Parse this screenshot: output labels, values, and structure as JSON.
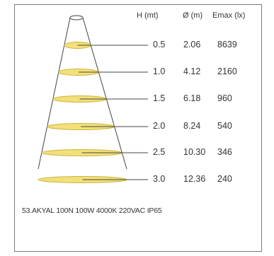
{
  "headers": {
    "h": "H (mt)",
    "d": "Ø (m)",
    "e": "Emax (lx)"
  },
  "rows": [
    {
      "h": "0.5",
      "d": "2.06",
      "e": "8639"
    },
    {
      "h": "1.0",
      "d": "4.12",
      "e": "2160"
    },
    {
      "h": "1.5",
      "d": "6.18",
      "e": "960"
    },
    {
      "h": "2.0",
      "d": "8.24",
      "e": "540"
    },
    {
      "h": "2.5",
      "d": "10.30",
      "e": "346"
    },
    {
      "h": "3.0",
      "d": "12.36",
      "e": "240"
    }
  ],
  "caption": "53.AKYAL 100N 100W 4000K 220VAC IP65",
  "colors": {
    "ellipse_fill": "#f3e07a",
    "ellipse_stroke": "#c9b53a",
    "line": "#444444"
  }
}
